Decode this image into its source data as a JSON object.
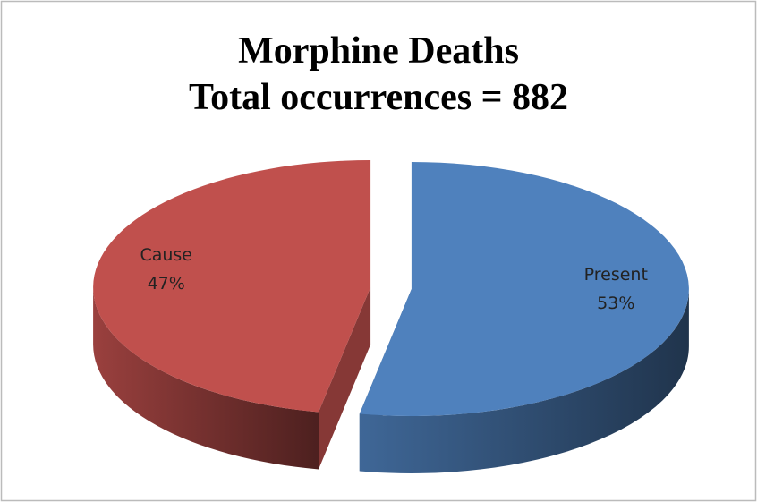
{
  "chart_data": {
    "type": "pie",
    "title": [
      "Morphine Deaths",
      "Total occurrences = 882"
    ],
    "categories": [
      "Present",
      "Cause"
    ],
    "values": [
      53,
      47
    ],
    "value_labels": [
      "53%",
      "47%"
    ],
    "colors": [
      "#4f81bd",
      "#c0504d"
    ],
    "exploded": true,
    "three_d": true
  }
}
